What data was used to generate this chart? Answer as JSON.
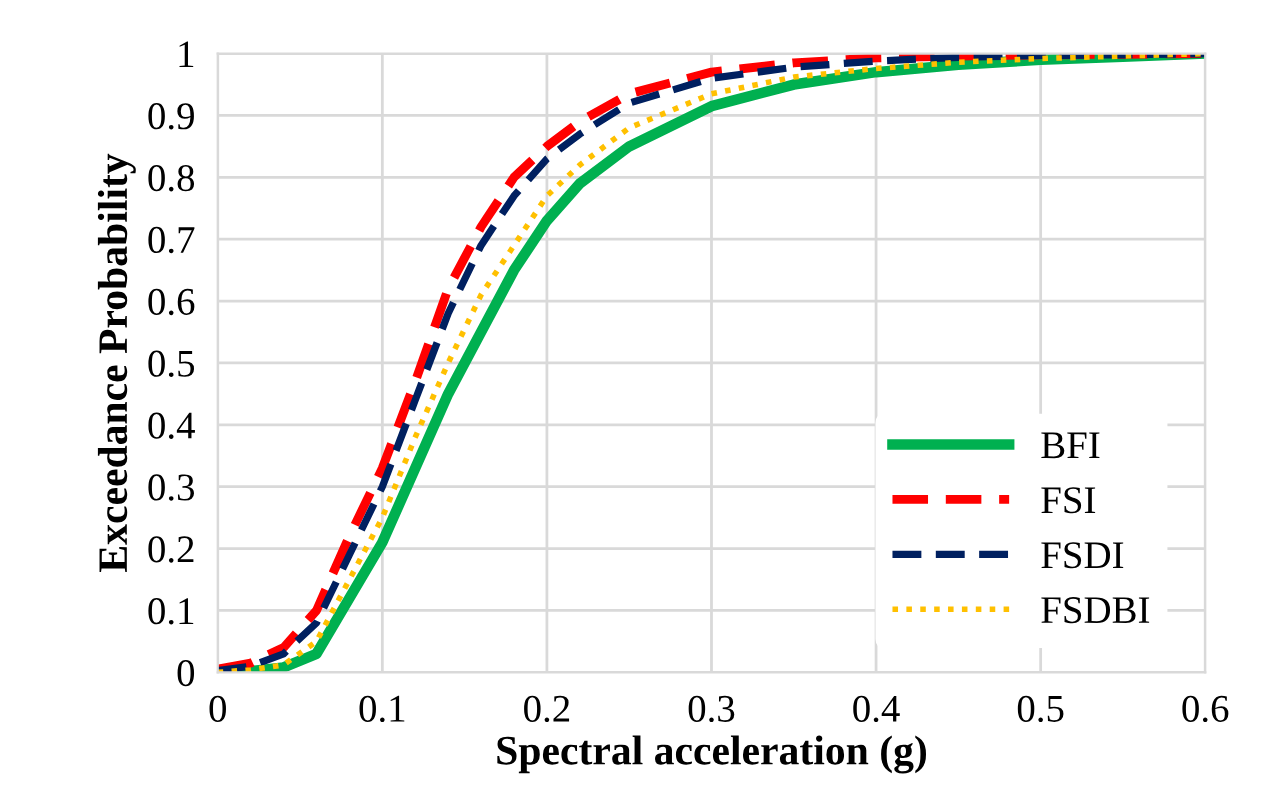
{
  "chart_data": {
    "type": "line",
    "xlabel": "Spectral acceleration (g)",
    "ylabel": "Exceedance Probability",
    "x": [
      0,
      0.02,
      0.04,
      0.06,
      0.08,
      0.1,
      0.12,
      0.14,
      0.16,
      0.18,
      0.2,
      0.22,
      0.25,
      0.3,
      0.35,
      0.4,
      0.45,
      0.5,
      0.55,
      0.6
    ],
    "series": [
      {
        "name": "BFI",
        "color": "#00b050",
        "line_style": "solid",
        "values": [
          0,
          0.002,
          0.008,
          0.03,
          0.12,
          0.21,
          0.33,
          0.45,
          0.55,
          0.65,
          0.73,
          0.79,
          0.85,
          0.915,
          0.95,
          0.97,
          0.982,
          0.99,
          0.995,
          1
        ]
      },
      {
        "name": "FSI",
        "color": "#ff0000",
        "line_style": "dashed",
        "values": [
          0.005,
          0.015,
          0.04,
          0.1,
          0.22,
          0.33,
          0.47,
          0.62,
          0.72,
          0.8,
          0.85,
          0.89,
          0.935,
          0.97,
          0.985,
          0.993,
          0.996,
          0.998,
          0.999,
          1
        ]
      },
      {
        "name": "FSDI",
        "color": "#002060",
        "line_style": "dashed",
        "values": [
          0.003,
          0.01,
          0.03,
          0.08,
          0.19,
          0.3,
          0.44,
          0.58,
          0.69,
          0.77,
          0.83,
          0.87,
          0.92,
          0.96,
          0.978,
          0.988,
          0.994,
          0.997,
          0.998,
          1
        ]
      },
      {
        "name": "FSDBI",
        "color": "#ffc000",
        "line_style": "dotted",
        "values": [
          0,
          0.004,
          0.012,
          0.05,
          0.15,
          0.25,
          0.38,
          0.5,
          0.61,
          0.69,
          0.77,
          0.82,
          0.88,
          0.935,
          0.962,
          0.976,
          0.986,
          0.992,
          0.996,
          1
        ]
      }
    ],
    "xlim": [
      0,
      0.6
    ],
    "xticks": [
      0,
      0.1,
      0.2,
      0.3,
      0.4,
      0.5,
      0.6
    ],
    "ylim": [
      0,
      1
    ],
    "yticks": [
      0,
      0.1,
      0.2,
      0.3,
      0.4,
      0.5,
      0.6,
      0.7,
      0.8,
      0.9,
      1
    ],
    "grid": true,
    "legend": "bottom right"
  }
}
